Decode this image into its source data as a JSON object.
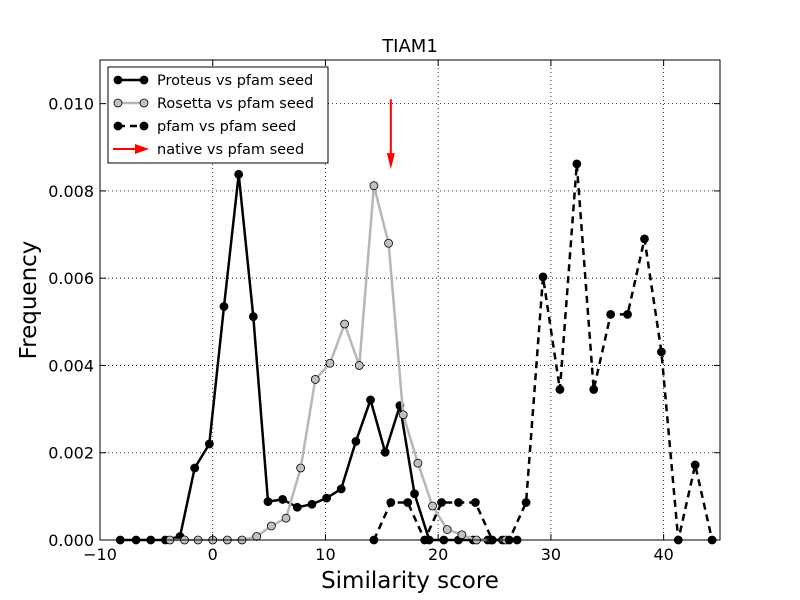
{
  "chart_data": {
    "type": "line",
    "title": "TIAM1",
    "xlabel": "Similarity score",
    "ylabel": "Frequency",
    "xlim": [
      -10,
      45
    ],
    "ylim": [
      0,
      0.011
    ],
    "xticks": [
      -10,
      0,
      10,
      20,
      30,
      40
    ],
    "xtick_labels": [
      "−10",
      "0",
      "10",
      "20",
      "30",
      "40"
    ],
    "yticks": [
      0,
      0.002,
      0.004,
      0.006,
      0.008,
      0.01
    ],
    "ytick_labels": [
      "0.000",
      "0.002",
      "0.004",
      "0.006",
      "0.008",
      "0.010"
    ],
    "grid": true,
    "legend_position": "top-left",
    "series": [
      {
        "name": "Proteus vs pfam seed",
        "color": "#000000",
        "line_style": "solid",
        "marker_fill": "#000000",
        "x": [
          -8.2,
          -6.8,
          -5.5,
          -4.2,
          -2.9,
          -1.6,
          -0.3,
          1.0,
          2.3,
          3.6,
          4.9,
          6.2,
          7.5,
          8.8,
          10.1,
          11.4,
          12.7,
          14.0,
          15.3,
          16.6,
          17.9,
          19.2,
          20.5,
          21.8,
          23.1,
          24.4,
          25.7,
          27.0
        ],
        "y": [
          0.0,
          0.0,
          0.0,
          0.0,
          8e-05,
          0.00165,
          0.0022,
          0.00535,
          0.00838,
          0.00512,
          0.00088,
          0.00093,
          0.00075,
          0.00082,
          0.00096,
          0.00117,
          0.00226,
          0.00321,
          0.00201,
          0.00308,
          0.00106,
          0.0,
          0.0,
          0.0,
          0.0,
          0.0,
          0.0,
          0.0
        ]
      },
      {
        "name": "Rosetta vs pfam seed",
        "color": "#b7b7b7",
        "line_style": "solid",
        "marker_fill": "#c0c0c0",
        "x": [
          -3.8,
          -2.5,
          -1.3,
          0.0,
          1.3,
          2.6,
          3.9,
          5.2,
          6.5,
          7.8,
          9.1,
          10.4,
          11.7,
          13.0,
          14.3,
          15.6,
          16.9,
          18.2,
          19.5,
          20.8,
          22.1,
          23.4,
          24.7,
          26.0
        ],
        "y": [
          0.0,
          0.0,
          0.0,
          0.0,
          0.0,
          0.0,
          8e-05,
          0.00032,
          0.0005,
          0.00165,
          0.00368,
          0.00405,
          0.00495,
          0.004,
          0.00812,
          0.0068,
          0.00287,
          0.00176,
          0.00078,
          0.00024,
          0.00012,
          0.0,
          0.0,
          0.0
        ]
      },
      {
        "name": "pfam vs pfam seed",
        "color": "#000000",
        "line_style": "dashed",
        "marker_fill": "#000000",
        "x": [
          14.3,
          15.8,
          17.3,
          18.8,
          20.3,
          21.8,
          23.3,
          24.8,
          26.3,
          27.8,
          29.3,
          30.8,
          32.3,
          33.8,
          35.3,
          36.8,
          38.3,
          39.8,
          41.3,
          42.8,
          44.3
        ],
        "y": [
          0.0,
          0.00086,
          0.00086,
          0.0,
          0.00086,
          0.00086,
          0.00086,
          0.0,
          0.0,
          0.00086,
          0.00603,
          0.00345,
          0.00862,
          0.00345,
          0.00517,
          0.00517,
          0.0069,
          0.00431,
          0.0,
          0.00172,
          0.0
        ]
      }
    ],
    "annotations": [
      {
        "name": "native vs pfam seed",
        "type": "arrow",
        "color": "#ff0000",
        "x": 15.8,
        "y_start": 0.0101,
        "y_end": 0.0085
      }
    ]
  }
}
